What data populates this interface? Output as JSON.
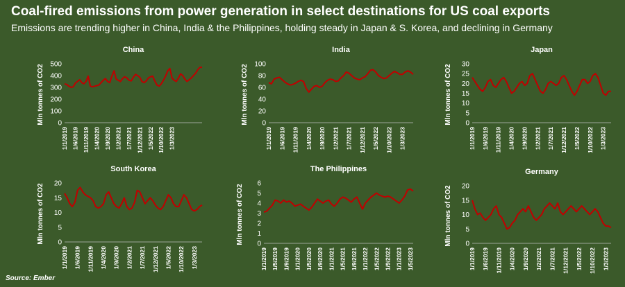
{
  "title": "Coal-fired emissions from power generation in select destinations for US coal exports",
  "subtitle": "Emissions are trending higher in China, India & the Philippines, holding steady in Japan & S. Korea, and declining in Germany",
  "source": "Source: Ember",
  "colors": {
    "background": "#3b5a2a",
    "line": "#c00000",
    "text": "#ffffff",
    "axis": "#bfbfbf"
  },
  "chart_data": [
    {
      "type": "line",
      "title": "China",
      "ylabel": "Mln tonnes of CO2",
      "xlabel": "",
      "ylim": [
        0,
        500
      ],
      "yticks": [
        0,
        100,
        200,
        300,
        400,
        500
      ],
      "x_tick_labels": [
        "1/1/2019",
        "1/6/2019",
        "1/11/2019",
        "1/4/2020",
        "1/9/2020",
        "1/2/2021",
        "1/7/2021",
        "1/12/2021",
        "1/5/2022",
        "1/10/2022",
        "1/3/2023"
      ],
      "x_tick_interval_months": 5,
      "grid": false,
      "series": [
        {
          "values": [
            330,
            325,
            310,
            300,
            305,
            335,
            350,
            365,
            340,
            330,
            350,
            395,
            310,
            305,
            310,
            315,
            320,
            340,
            360,
            375,
            350,
            340,
            395,
            440,
            370,
            360,
            350,
            375,
            390,
            380,
            360,
            355,
            385,
            410,
            400,
            385,
            350,
            340,
            355,
            380,
            390,
            395,
            355,
            320,
            310,
            330,
            360,
            395,
            440,
            460,
            380,
            360,
            350,
            380,
            415,
            400,
            370,
            350,
            365,
            380,
            400,
            420,
            450,
            470,
            470
          ]
        }
      ]
    },
    {
      "type": "line",
      "title": "India",
      "ylabel": "Mln tonnes of CO2",
      "xlabel": "",
      "ylim": [
        0,
        100
      ],
      "yticks": [
        0,
        20,
        40,
        60,
        80,
        100
      ],
      "x_tick_labels": [
        "1/1/2019",
        "1/6/2019",
        "1/11/2019",
        "1/4/2020",
        "1/9/2020",
        "1/2/2021",
        "1/7/2021",
        "1/12/2021",
        "1/5/2022",
        "1/10/2022",
        "1/3/2023"
      ],
      "x_tick_interval_months": 5,
      "grid": false,
      "series": [
        {
          "values": [
            68,
            66,
            74,
            76,
            77,
            73,
            69,
            66,
            64,
            65,
            67,
            70,
            72,
            70,
            58,
            52,
            57,
            62,
            63,
            60,
            62,
            68,
            72,
            74,
            73,
            70,
            71,
            76,
            80,
            86,
            84,
            80,
            76,
            74,
            73,
            76,
            78,
            83,
            89,
            90,
            86,
            80,
            77,
            75,
            76,
            80,
            84,
            87,
            85,
            82,
            82,
            86,
            88,
            86,
            82
          ]
        }
      ]
    },
    {
      "type": "line",
      "title": "Japan",
      "ylabel": "Mln tonnes of CO2",
      "xlabel": "",
      "ylim": [
        0,
        30
      ],
      "yticks": [
        0,
        5,
        10,
        15,
        20,
        25,
        30
      ],
      "x_tick_labels": [
        "1/1/2019",
        "1/6/2019",
        "1/11/2019",
        "1/4/2020",
        "1/9/2020",
        "1/2/2021",
        "1/7/2021",
        "1/12/2021",
        "1/5/2022",
        "1/10/2022",
        "1/3/2023"
      ],
      "x_tick_interval_months": 5,
      "grid": false,
      "series": [
        {
          "values": [
            23,
            21,
            19,
            17,
            16,
            18,
            21,
            22,
            19,
            18,
            20,
            22,
            23,
            21,
            18,
            15,
            16,
            18,
            20,
            21,
            19,
            20,
            24,
            25,
            22,
            19,
            16,
            15,
            17,
            20,
            21,
            20,
            19,
            20,
            23,
            24,
            22,
            19,
            16,
            14,
            16,
            19,
            22,
            22,
            20,
            21,
            24,
            25,
            23,
            19,
            15,
            14,
            16,
            16
          ]
        }
      ]
    },
    {
      "type": "line",
      "title": "South Korea",
      "ylabel": "Mln tonnes of CO2",
      "xlabel": "",
      "ylim": [
        0,
        20
      ],
      "yticks": [
        0,
        5,
        10,
        15,
        20
      ],
      "x_tick_labels": [
        "1/1/2019",
        "1/6/2019",
        "1/11/2019",
        "1/4/2020",
        "1/9/2020",
        "1/2/2021",
        "1/7/2021",
        "1/12/2021",
        "1/5/2022",
        "1/10/2022",
        "1/3/2023"
      ],
      "x_tick_interval_months": 5,
      "grid": false,
      "series": [
        {
          "values": [
            16.5,
            15,
            13,
            12,
            13.5,
            17.5,
            18.5,
            17,
            16,
            15.5,
            15,
            14,
            12,
            11.5,
            12,
            13,
            16,
            17,
            15,
            13,
            12,
            11.5,
            13,
            15,
            12,
            11,
            11.5,
            13.5,
            17.5,
            17,
            15,
            13,
            14,
            15,
            14,
            12.5,
            11.5,
            11,
            12,
            14,
            16,
            15,
            13,
            12,
            12,
            14,
            16,
            15,
            13,
            11,
            10.5,
            11,
            12,
            12.5
          ]
        }
      ]
    },
    {
      "type": "line",
      "title": "The Philippines",
      "ylabel": "Mln tonnes of CO2",
      "xlabel": "",
      "ylim": [
        0,
        6
      ],
      "yticks": [
        0,
        1,
        2,
        3,
        4,
        5,
        6
      ],
      "x_tick_labels": [
        "1/1/2019",
        "1/5/2019",
        "1/9/2019",
        "1/1/2020",
        "1/5/2020",
        "1/9/2020",
        "1/1/2021",
        "1/5/2021",
        "1/9/2021",
        "1/1/2022",
        "1/5/2022",
        "1/9/2022",
        "1/1/2023",
        "1/5/2023"
      ],
      "x_tick_interval_months": 4,
      "grid": false,
      "series": [
        {
          "values": [
            3.1,
            3.2,
            3.5,
            3.8,
            4.3,
            4.2,
            4.0,
            4.3,
            4.1,
            4.2,
            4.0,
            3.7,
            3.8,
            3.9,
            3.7,
            3.5,
            3.3,
            3.6,
            4.0,
            4.4,
            4.2,
            4.0,
            4.2,
            4.3,
            3.9,
            3.7,
            4.0,
            4.4,
            4.6,
            4.5,
            4.3,
            4.1,
            4.4,
            4.6,
            4.0,
            3.4,
            4.0,
            4.3,
            4.6,
            4.8,
            5.0,
            4.8,
            4.7,
            4.6,
            4.7,
            4.6,
            4.4,
            4.2,
            4.0,
            4.3,
            4.7,
            5.3,
            5.4,
            5.2
          ]
        }
      ]
    },
    {
      "type": "line",
      "title": "Germany",
      "ylabel": "Mln tonnes of CO2",
      "xlabel": "",
      "ylim": [
        0,
        20
      ],
      "yticks": [
        0,
        5,
        10,
        15,
        20
      ],
      "x_tick_labels": [
        "1/1/2019",
        "1/6/2019",
        "1/11/2019",
        "1/4/2020",
        "1/9/2020",
        "1/2/2021",
        "1/7/2021",
        "1/12/2021",
        "1/5/2022",
        "1/10/2022",
        "1/3/2023"
      ],
      "x_tick_interval_months": 5,
      "grid": false,
      "series": [
        {
          "values": [
            15,
            12,
            10,
            10.5,
            9,
            8,
            9,
            10,
            12,
            13,
            10,
            9,
            7,
            5,
            5.5,
            7,
            8,
            10,
            11,
            12,
            11,
            13,
            11,
            9,
            8,
            9,
            10,
            12,
            13,
            14,
            13,
            12,
            14,
            11,
            10,
            11,
            12,
            13,
            12,
            11,
            12,
            13,
            12,
            11,
            10,
            11,
            12,
            11,
            9,
            7,
            6,
            6,
            5.5
          ]
        }
      ]
    }
  ]
}
